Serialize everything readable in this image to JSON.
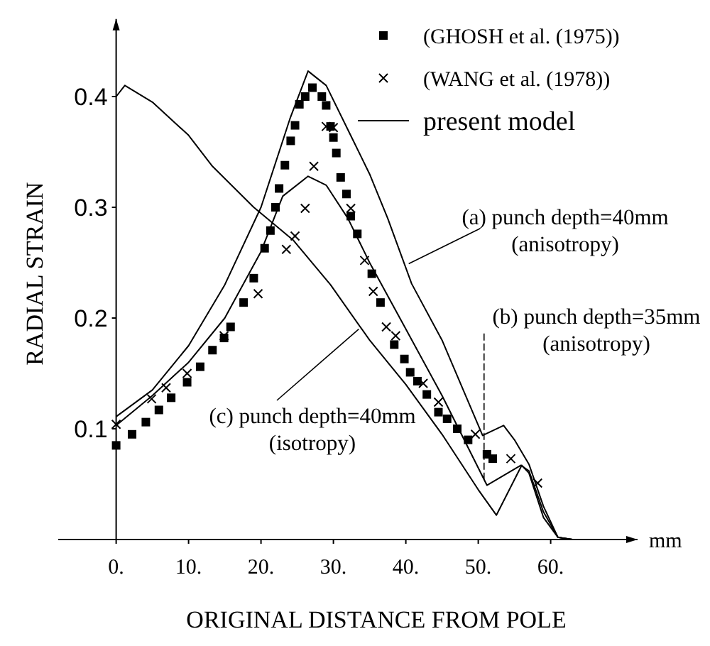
{
  "chart_data": {
    "type": "scatter",
    "xlabel": "ORIGINAL DISTANCE FROM POLE",
    "ylabel": "RADIAL STRAIN",
    "xlim": [
      -8,
      72
    ],
    "ylim": [
      0,
      0.47
    ],
    "xticks": [
      {
        "value": 0,
        "label": "0."
      },
      {
        "value": 10,
        "label": "10."
      },
      {
        "value": 20,
        "label": "20."
      },
      {
        "value": 30,
        "label": "30."
      },
      {
        "value": 40,
        "label": "40."
      },
      {
        "value": 50,
        "label": "50."
      },
      {
        "value": 60,
        "label": "60."
      }
    ],
    "yticks": [
      0.1,
      0.2,
      0.3,
      0.4
    ],
    "grid": false,
    "legend": "top right",
    "series": [
      {
        "name": "(GHOSH et al. (1975))",
        "marker": "square",
        "color": "#000000",
        "x": [
          0,
          2.2,
          4.1,
          5.9,
          7.6,
          9.8,
          11.6,
          13.3,
          14.9,
          15.8,
          17.6,
          19,
          20.5,
          21.3,
          22,
          22.5,
          23.3,
          24.1,
          24.7,
          25.3,
          26.1,
          27.1,
          28.4,
          29,
          29.6,
          30,
          30.4,
          31,
          31.8,
          32.4,
          33.3,
          35.3,
          36.5,
          38.4,
          39.8,
          40.6,
          41.6,
          42.9,
          44.5,
          45.7,
          47.1,
          48.6,
          51.2,
          52
        ],
        "values": [
          0.085,
          0.095,
          0.106,
          0.117,
          0.128,
          0.142,
          0.156,
          0.171,
          0.182,
          0.192,
          0.214,
          0.236,
          0.263,
          0.279,
          0.3,
          0.317,
          0.338,
          0.36,
          0.374,
          0.393,
          0.4,
          0.408,
          0.4,
          0.392,
          0.373,
          0.363,
          0.349,
          0.327,
          0.312,
          0.292,
          0.276,
          0.24,
          0.214,
          0.176,
          0.163,
          0.151,
          0.143,
          0.131,
          0.115,
          0.109,
          0.1,
          0.09,
          0.077,
          0.073
        ]
      },
      {
        "name": "(WANG et al. (1978))",
        "marker": "cross",
        "color": "#000000",
        "x": [
          0,
          4.9,
          6.9,
          9.8,
          14.9,
          19.6,
          23.5,
          24.7,
          26.1,
          27.3,
          29,
          30,
          32.4,
          34.3,
          35.5,
          37.3,
          38.6,
          42.4,
          44.5,
          49.6,
          54.5,
          58.2
        ],
        "values": [
          0.104,
          0.127,
          0.137,
          0.15,
          0.184,
          0.222,
          0.262,
          0.274,
          0.299,
          0.337,
          0.373,
          0.372,
          0.299,
          0.252,
          0.224,
          0.192,
          0.184,
          0.141,
          0.124,
          0.095,
          0.073,
          0.051
        ]
      },
      {
        "name": "present model",
        "type": "line",
        "marker": "none",
        "line_style": "solid",
        "color": "#000000",
        "x": [
          0,
          5,
          10,
          15,
          20,
          24,
          26.5,
          29,
          32,
          35,
          37.5,
          40.8,
          45,
          50.6,
          53.5,
          55,
          57,
          59,
          61,
          63
        ],
        "values": [
          0.111,
          0.135,
          0.175,
          0.23,
          0.3,
          0.38,
          0.423,
          0.41,
          0.37,
          0.33,
          0.29,
          0.231,
          0.18,
          0.094,
          0.103,
          0.09,
          0.068,
          0.03,
          0.002,
          0
        ]
      },
      {
        "type": "line",
        "marker": "none",
        "line_style": "solid",
        "color": "#000000",
        "x": [
          0,
          5,
          10,
          15,
          20,
          23,
          26.5,
          29,
          32,
          35,
          40,
          45,
          51.2,
          55.9,
          57,
          59,
          61,
          63
        ],
        "values": [
          0.103,
          0.13,
          0.16,
          0.2,
          0.26,
          0.31,
          0.328,
          0.32,
          0.29,
          0.25,
          0.19,
          0.13,
          0.049,
          0.067,
          0.062,
          0.025,
          0.002,
          0
        ]
      },
      {
        "type": "line",
        "marker": "none",
        "line_style": "solid",
        "color": "#000000",
        "x": [
          0,
          1.2,
          5,
          10,
          13.3,
          19,
          24.5,
          29.6,
          35,
          40,
          45,
          50,
          52.5,
          56,
          57,
          59,
          61,
          63
        ],
        "values": [
          0.4,
          0.41,
          0.395,
          0.365,
          0.337,
          0.3,
          0.27,
          0.23,
          0.18,
          0.14,
          0.095,
          0.045,
          0.022,
          0.067,
          0.06,
          0.02,
          0.002,
          0
        ]
      }
    ],
    "annotations": [
      {
        "text": "(a) punch depth=40mm\n(anisotropy)",
        "x": 40.4,
        "y": 0.249
      },
      {
        "text": "(b) punch depth=35mm\n(anisotropy)",
        "x": 50.8,
        "y": 0.054
      },
      {
        "text": "(c) punch depth=40mm\n(isotropy)",
        "x": 33.5,
        "y": 0.19
      },
      "mm"
    ]
  }
}
